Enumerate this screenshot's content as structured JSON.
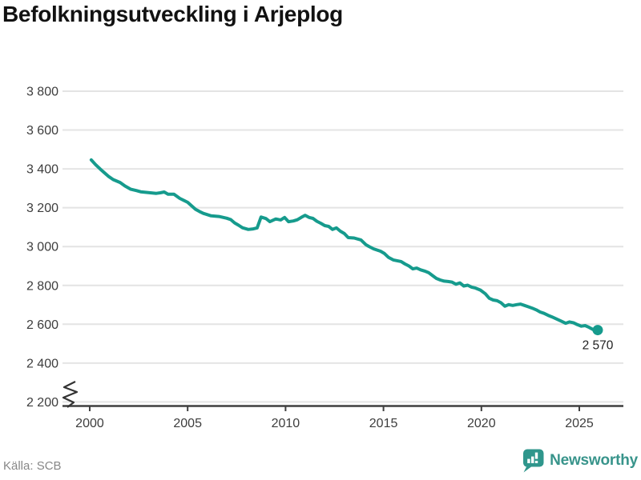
{
  "header": {
    "title": "Befolkningsutveckling i Arjeplog"
  },
  "footer": {
    "source": "Källa: SCB",
    "brand_name": "Newsworthy"
  },
  "icons": {
    "brand_logo": "newsworthy-bar-chart-speech-bubble-icon",
    "axis_break": "y-axis-break-zigzag"
  },
  "colors": {
    "line": "#169b8d",
    "dot": "#169b8d",
    "grid": "#e4e4e4",
    "axis": "#3f3f3f",
    "tick_text": "#3d3d3d",
    "title_text": "#121212",
    "annotation_text": "#1f1f1f",
    "source_text": "#878787",
    "brand": "#38948b",
    "background": "#ffffff"
  },
  "chart_data": {
    "type": "line",
    "title": "Befolkningsutveckling i Arjeplog",
    "xlabel": "",
    "ylabel": "",
    "grid": "horizontal",
    "legend": "none",
    "axis_break_low": true,
    "xlim": [
      1998.61,
      2027.25
    ],
    "ylim": [
      2200,
      3800
    ],
    "x_ticks": [
      2000,
      2005,
      2010,
      2015,
      2020,
      2025
    ],
    "y_ticks": [
      3800,
      3600,
      3400,
      3200,
      3000,
      2800,
      2600,
      2400,
      2200
    ],
    "y_tick_labels": [
      "3 800",
      "3 600",
      "3 400",
      "3 200",
      "3 000",
      "2 800",
      "2 600",
      "2 400",
      "2 200"
    ],
    "series": [
      {
        "name": "Befolkning",
        "x": [
          2000.08,
          2000.3,
          2000.55,
          2000.95,
          2001.2,
          2001.55,
          2001.8,
          2002.1,
          2002.4,
          2002.6,
          2003.0,
          2003.4,
          2003.6,
          2003.8,
          2004.0,
          2004.3,
          2004.6,
          2004.8,
          2005.0,
          2005.2,
          2005.4,
          2005.6,
          2005.8,
          2006.2,
          2006.6,
          2007.0,
          2007.2,
          2007.4,
          2007.6,
          2007.8,
          2008.1,
          2008.35,
          2008.55,
          2008.75,
          2009.0,
          2009.2,
          2009.5,
          2009.75,
          2009.95,
          2010.15,
          2010.4,
          2010.6,
          2010.8,
          2011.0,
          2011.2,
          2011.4,
          2011.6,
          2011.8,
          2012.0,
          2012.2,
          2012.4,
          2012.6,
          2012.8,
          2013.0,
          2013.2,
          2013.5,
          2013.85,
          2014.1,
          2014.25,
          2014.5,
          2014.85,
          2015.05,
          2015.25,
          2015.5,
          2015.9,
          2016.1,
          2016.3,
          2016.5,
          2016.7,
          2016.9,
          2017.1,
          2017.3,
          2017.5,
          2017.7,
          2017.9,
          2018.1,
          2018.3,
          2018.5,
          2018.7,
          2018.9,
          2019.1,
          2019.3,
          2019.5,
          2019.7,
          2019.95,
          2020.2,
          2020.4,
          2020.6,
          2020.8,
          2021.0,
          2021.2,
          2021.4,
          2021.6,
          2021.8,
          2022.0,
          2022.2,
          2022.4,
          2022.6,
          2022.8,
          2023.0,
          2023.2,
          2023.4,
          2023.6,
          2023.8,
          2024.1,
          2024.3,
          2024.5,
          2024.7,
          2024.9,
          2025.1,
          2025.3,
          2025.5,
          2025.7,
          2025.94
        ],
        "y": [
          3446,
          3422,
          3398,
          3362,
          3345,
          3330,
          3312,
          3295,
          3288,
          3282,
          3278,
          3274,
          3277,
          3281,
          3270,
          3270,
          3248,
          3238,
          3228,
          3210,
          3192,
          3181,
          3171,
          3158,
          3155,
          3146,
          3139,
          3122,
          3110,
          3097,
          3088,
          3091,
          3096,
          3152,
          3144,
          3128,
          3142,
          3137,
          3150,
          3128,
          3132,
          3138,
          3150,
          3161,
          3150,
          3145,
          3130,
          3120,
          3108,
          3104,
          3088,
          3096,
          3079,
          3067,
          3046,
          3044,
          3034,
          3010,
          3001,
          2988,
          2976,
          2964,
          2945,
          2931,
          2923,
          2910,
          2900,
          2885,
          2889,
          2880,
          2874,
          2866,
          2851,
          2836,
          2828,
          2822,
          2820,
          2817,
          2806,
          2813,
          2797,
          2801,
          2791,
          2786,
          2776,
          2757,
          2734,
          2725,
          2721,
          2711,
          2693,
          2701,
          2697,
          2701,
          2704,
          2697,
          2690,
          2683,
          2674,
          2663,
          2656,
          2646,
          2638,
          2629,
          2615,
          2605,
          2612,
          2608,
          2598,
          2590,
          2593,
          2584,
          2573,
          2570
        ]
      }
    ],
    "end_label": {
      "text": "2 570",
      "x": 2025.94,
      "y": 2570
    }
  }
}
